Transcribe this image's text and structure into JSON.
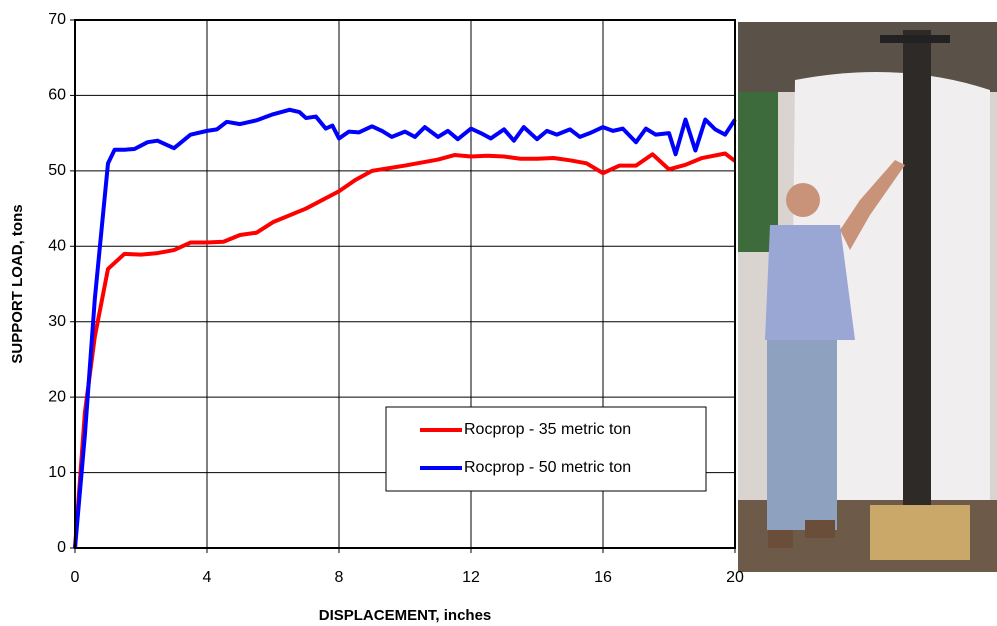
{
  "chart_data": {
    "type": "line",
    "xlabel": "DISPLACEMENT, inches",
    "ylabel": "SUPPORT LOAD, tons",
    "xlim": [
      0,
      20
    ],
    "xticks": [
      0,
      4,
      8,
      12,
      16,
      20
    ],
    "ylim": [
      0,
      70
    ],
    "yticks": [
      0,
      10,
      20,
      30,
      40,
      50,
      60,
      70
    ],
    "grid": true,
    "legend": "lower right",
    "series": [
      {
        "name": "Rocprop - 35 metric ton",
        "color": "#ff0000",
        "x": [
          0,
          0.3,
          0.6,
          1,
          1.5,
          2,
          2.5,
          3,
          3.5,
          4,
          4.5,
          5,
          5.5,
          6,
          7,
          8,
          8.5,
          9,
          10,
          11,
          11.5,
          12,
          12.5,
          13,
          13.5,
          14,
          14.5,
          15,
          15.5,
          16,
          16.5,
          17,
          17.5,
          18,
          18.5,
          19,
          19.7,
          20
        ],
        "values": [
          0,
          18,
          28,
          37,
          39,
          38.9,
          39.1,
          39.5,
          40.5,
          40.5,
          40.6,
          41.5,
          41.8,
          43.2,
          45,
          47.3,
          48.8,
          50,
          50.7,
          51.5,
          52.1,
          51.9,
          52,
          51.9,
          51.6,
          51.6,
          51.7,
          51.4,
          51,
          49.7,
          50.7,
          50.7,
          52.2,
          50.2,
          50.8,
          51.7,
          52.3,
          51.3
        ]
      },
      {
        "name": "Rocprop - 50 metric ton",
        "color": "#0000ff",
        "x": [
          0,
          0.3,
          0.6,
          0.8,
          1,
          1.2,
          1.5,
          1.8,
          2.2,
          2.5,
          3,
          3.5,
          4,
          4.3,
          4.6,
          5,
          5.5,
          6,
          6.5,
          6.8,
          7,
          7.3,
          7.6,
          7.8,
          8,
          8.3,
          8.6,
          9,
          9.3,
          9.6,
          10,
          10.3,
          10.6,
          11,
          11.3,
          11.6,
          12,
          12.3,
          12.6,
          13,
          13.3,
          13.6,
          14,
          14.3,
          14.6,
          15,
          15.3,
          15.6,
          16,
          16.3,
          16.6,
          17,
          17.3,
          17.6,
          18,
          18.2,
          18.5,
          18.8,
          19.1,
          19.4,
          19.7,
          20
        ],
        "values": [
          0,
          15,
          33,
          42,
          51,
          52.8,
          52.8,
          52.9,
          53.8,
          54,
          53,
          54.8,
          55.3,
          55.5,
          56.5,
          56.2,
          56.7,
          57.5,
          58.1,
          57.8,
          57,
          57.2,
          55.6,
          56,
          54.3,
          55.2,
          55.1,
          55.9,
          55.3,
          54.5,
          55.2,
          54.5,
          55.8,
          54.5,
          55.3,
          54.2,
          55.6,
          55,
          54.3,
          55.5,
          54,
          55.8,
          54.2,
          55.3,
          54.8,
          55.5,
          54.5,
          55,
          55.8,
          55.3,
          55.6,
          53.8,
          55.6,
          54.8,
          55,
          52.2,
          56.8,
          52.7,
          56.8,
          55.5,
          54.8,
          56.8
        ]
      }
    ]
  }
}
